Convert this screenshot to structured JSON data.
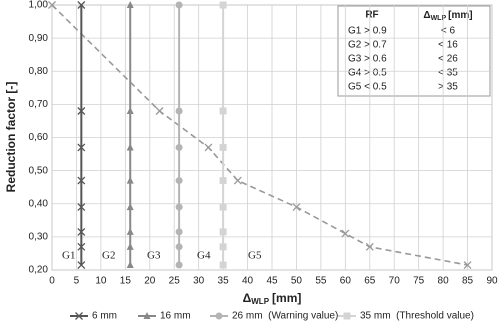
{
  "chart_data": {
    "type": "line",
    "y_label": "Reduction factor [-]",
    "x_label": {
      "symbol": "Δ",
      "sub": "WLP",
      "unit": "[mm]"
    },
    "xlim": [
      0,
      90
    ],
    "xticks": [
      0,
      5,
      10,
      15,
      20,
      25,
      30,
      35,
      40,
      45,
      50,
      55,
      60,
      65,
      70,
      75,
      80,
      85,
      90
    ],
    "ylim": [
      0.2,
      1.0
    ],
    "yticks": [
      {
        "value": 0.2,
        "label": "0,20"
      },
      {
        "value": 0.3,
        "label": "0,30"
      },
      {
        "value": 0.4,
        "label": "0,40"
      },
      {
        "value": 0.5,
        "label": "0,50"
      },
      {
        "value": 0.6,
        "label": "0,60"
      },
      {
        "value": 0.7,
        "label": "0,70"
      },
      {
        "value": 0.8,
        "label": "0,80"
      },
      {
        "value": 0.9,
        "label": "0,90"
      },
      {
        "value": 1.0,
        "label": "1,00"
      }
    ],
    "grid": true,
    "series": [
      {
        "name": "6 mm",
        "color": "#555555",
        "marker": "x",
        "x": 6,
        "values": [
          1.0,
          0.68,
          0.57,
          0.47,
          0.39,
          0.315,
          0.27,
          0.215
        ]
      },
      {
        "name": "16 mm",
        "color": "#888888",
        "marker": "triangle",
        "x": 16,
        "values": [
          1.0,
          0.68,
          0.57,
          0.47,
          0.39,
          0.315,
          0.27,
          0.215
        ]
      },
      {
        "name": "26 mm  (Warning value)",
        "color": "#b4b4b4",
        "marker": "circle",
        "x": 26,
        "values": [
          1.0,
          0.68,
          0.57,
          0.47,
          0.39,
          0.315,
          0.27,
          0.215
        ]
      },
      {
        "name": "35 mm  (Threshold value)",
        "color": "#d4d4d4",
        "marker": "square",
        "x": 35,
        "values": [
          1.0,
          0.68,
          0.57,
          0.47,
          0.39,
          0.315,
          0.27,
          0.215
        ]
      }
    ],
    "curve": {
      "color": "#999999",
      "x": [
        0,
        22,
        32,
        38,
        50,
        60,
        65,
        85
      ],
      "values": [
        1.0,
        0.68,
        0.57,
        0.47,
        0.39,
        0.31,
        0.27,
        0.215
      ]
    },
    "region_labels": [
      "G1",
      "G2",
      "G3",
      "G4",
      "G5"
    ],
    "table": {
      "header": [
        "RF",
        {
          "symbol": "Δ",
          "sub": "WLP",
          "unit": "[mm]"
        }
      ],
      "rows": [
        [
          "G1 > 0.9",
          "< 6"
        ],
        [
          "G2 > 0.7",
          "< 16"
        ],
        [
          "G3 > 0.6",
          "< 26"
        ],
        [
          "G4 > 0.5",
          "< 35"
        ],
        [
          "G5 < 0.5",
          "> 35"
        ]
      ]
    }
  }
}
